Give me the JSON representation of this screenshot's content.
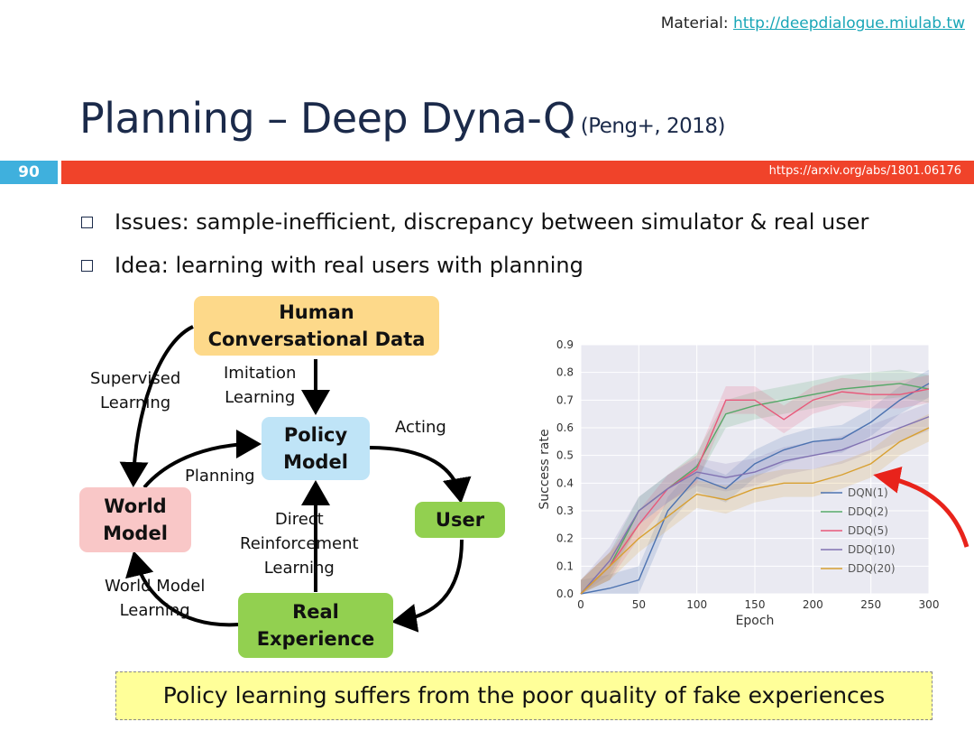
{
  "header": {
    "material_prefix": "Material: ",
    "material_link": "http://deepdialogue.miulab.tw"
  },
  "slide": {
    "title": "Planning – Deep Dyna-Q",
    "citation": "(Peng+, 2018)",
    "number": "90",
    "paper_url": "https://arxiv.org/abs/1801.06176"
  },
  "bullets": [
    "Issues: sample-inefficient, discrepancy between simulator & real user",
    "Idea: learning with real users with planning"
  ],
  "diagram": {
    "nodes": {
      "human": "Human\nConversational Data",
      "policy": "Policy\nModel",
      "world": "World\nModel",
      "user": "User",
      "real": "Real\nExperience"
    },
    "edges": {
      "supervised": "Supervised\nLearning",
      "imitation": "Imitation\nLearning",
      "acting": "Acting",
      "planning": "Planning",
      "direct_rl": "Direct\nReinforcement\nLearning",
      "world_model_learning": "World Model\nLearning"
    },
    "colors": {
      "human": "#fdd98a",
      "policy": "#bfe4f7",
      "world": "#f9c7c7",
      "user": "#92d050",
      "real": "#92d050",
      "arrow_highlight": "#e8231b"
    }
  },
  "chart_data": {
    "type": "line",
    "title": "",
    "xlabel": "Epoch",
    "ylabel": "Success rate",
    "xlim": [
      0,
      300
    ],
    "ylim": [
      0,
      0.9
    ],
    "xticks": [
      0,
      50,
      100,
      150,
      200,
      250,
      300
    ],
    "yticks": [
      "0.0",
      "0.1",
      "0.2",
      "0.3",
      "0.4",
      "0.5",
      "0.6",
      "0.7",
      "0.8",
      "0.9"
    ],
    "grid": true,
    "legend_position": "lower-right",
    "background": "#eaeaf2",
    "x": [
      0,
      25,
      50,
      75,
      100,
      125,
      150,
      175,
      200,
      225,
      250,
      275,
      300
    ],
    "series": [
      {
        "name": "DQN(1)",
        "color": "#4c72b0",
        "values": [
          0.0,
          0.02,
          0.05,
          0.3,
          0.42,
          0.38,
          0.47,
          0.52,
          0.55,
          0.56,
          0.62,
          0.7,
          0.76
        ]
      },
      {
        "name": "DDQ(2)",
        "color": "#55a868",
        "values": [
          0.0,
          0.1,
          0.3,
          0.38,
          0.46,
          0.65,
          0.68,
          0.7,
          0.72,
          0.74,
          0.75,
          0.76,
          0.74
        ]
      },
      {
        "name": "DDQ(5)",
        "color": "#e8587a",
        "values": [
          0.0,
          0.1,
          0.25,
          0.38,
          0.45,
          0.7,
          0.7,
          0.63,
          0.7,
          0.73,
          0.72,
          0.72,
          0.74
        ]
      },
      {
        "name": "DDQ(10)",
        "color": "#8172b2",
        "values": [
          0.0,
          0.12,
          0.3,
          0.38,
          0.44,
          0.42,
          0.44,
          0.48,
          0.5,
          0.52,
          0.56,
          0.6,
          0.64
        ]
      },
      {
        "name": "DDQ(20)",
        "color": "#d8a031",
        "values": [
          0.0,
          0.1,
          0.2,
          0.28,
          0.36,
          0.34,
          0.38,
          0.4,
          0.4,
          0.43,
          0.47,
          0.55,
          0.6
        ]
      }
    ]
  },
  "callout": {
    "text": "Policy learning suffers from the poor quality of fake experiences"
  }
}
